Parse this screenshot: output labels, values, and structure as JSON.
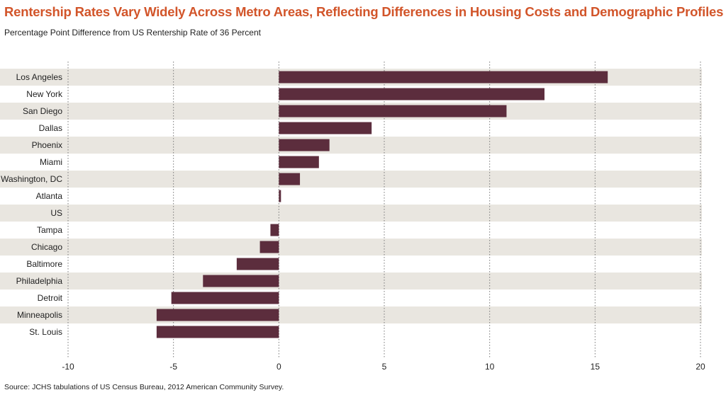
{
  "title": "Rentership Rates Vary Widely Across Metro Areas, Reflecting Differences in Housing Costs and Demographic Profiles",
  "subtitle": "Percentage Point Difference from US Rentership Rate of 36 Percent",
  "source": "Source: JCHS tabulations of US Census Bureau, 2012 American Community Survey.",
  "colors": {
    "title": "#d2552a",
    "bar": "#5c2d3d",
    "band": "#e9e6e0",
    "grid": "#777777",
    "text": "#222222"
  },
  "chart_data": {
    "type": "bar",
    "orientation": "horizontal",
    "categories": [
      "Los Angeles",
      "New York",
      "San Diego",
      "Dallas",
      "Phoenix",
      "Miami",
      "Washington, DC",
      "Atlanta",
      "US",
      "Tampa",
      "Chicago",
      "Baltimore",
      "Philadelphia",
      "Detroit",
      "Minneapolis",
      "St. Louis"
    ],
    "values": [
      15.6,
      12.6,
      10.8,
      4.4,
      2.4,
      1.9,
      1.0,
      0.1,
      0,
      -0.4,
      -0.9,
      -2.0,
      -3.6,
      -5.1,
      -5.8,
      -5.8
    ],
    "xlim": [
      -10,
      20
    ],
    "xticks": [
      "-10",
      "-5",
      "0",
      "5",
      "10",
      "15",
      "20"
    ],
    "xtick_values": [
      -10,
      -5,
      0,
      5,
      10,
      15,
      20
    ],
    "grid": true,
    "legend": "none"
  }
}
